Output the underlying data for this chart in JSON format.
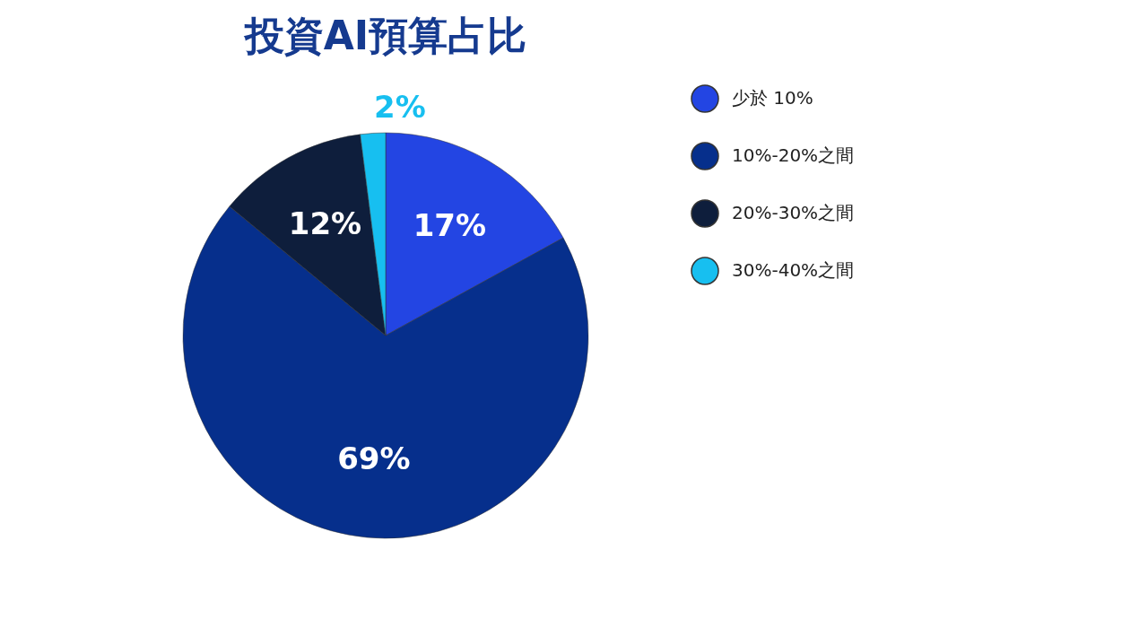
{
  "chart_data": {
    "type": "pie",
    "title": "投資AI預算占比",
    "categories": [
      "少於 10%",
      "10%-20%之間",
      "20%-30%之間",
      "30%-40%之間"
    ],
    "values": [
      17,
      69,
      12,
      2
    ],
    "colors": [
      "#2345e3",
      "#062f8c",
      "#0e1e3c",
      "#17bff0"
    ],
    "value_labels": [
      "17%",
      "69%",
      "12%",
      "2%"
    ],
    "legend": "right"
  }
}
